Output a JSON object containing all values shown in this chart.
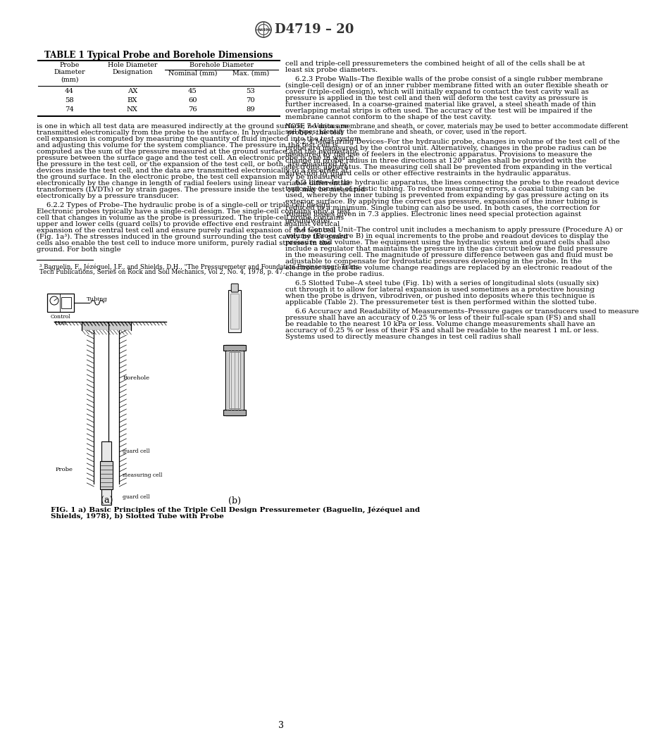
{
  "page_title": "D4719 – 20",
  "background_color": "#ffffff",
  "table_title": "TABLE 1 Typical Probe and Borehole Dimensions",
  "table_data": [
    [
      "44",
      "AX",
      "45",
      "53"
    ],
    [
      "58",
      "BX",
      "60",
      "70"
    ],
    [
      "74",
      "NX",
      "76",
      "89"
    ]
  ],
  "left_col_paragraphs": [
    {
      "indent": false,
      "text": "is one in which all test data are measured indirectly at the ground surface; no data are transmitted electronically from the probe to the surface. In hydraulic probes, the test cell expansion is computed by measuring the quantity of fluid injected into the test system and adjusting this volume for the system compliance. The pressure in the test cell is computed as the sum of the pressure measured at the ground surface and the hydrostatic pressure between the surface gage and the test cell. An electronic probe is one in which the pressure in the test cell, or the expansion of the test cell, or both, are measured by devices inside the test cell, and the data are transmitted electronically to a recorder at the ground surface. In the electronic probe, the test cell expansion may be measured electronically by the change in length of radial feelers using linear variable differential transformers (LVDTs) or by strain gages. The pressure inside the test cell may be measured electronically by a pressure transducer."
    },
    {
      "indent": true,
      "text": "6.2.2 Types of Probe–The hydraulic probe is of a single-cell or triple-cell design. Electronic probes typically have a single-cell design. The single-cell contains only a test cell that changes in volume as the probe is pressurized. The triple-cell probe contains upper and lower cells (guard cells) to provide effective end restraint against vertical expansion of the central test cell and ensure purely radial expansion of the test cell (Fig. 1a³). The stresses induced in the ground surrounding the test cavity by the guard cells also enable the test cell to induce more uniform, purely radial stresses in the ground. For both single"
    }
  ],
  "right_col_paragraphs": [
    {
      "type": "normal",
      "text": "cell and triple-cell pressuremeters the combined height of all of the cells shall be at least six probe diameters."
    },
    {
      "type": "section",
      "text": "6.2.3 Probe Walls–The flexible walls of the probe consist of a single rubber membrane (single-cell design) or of an inner rubber membrane fitted with an outer flexible sheath or cover (triple-cell design), which will initially expand to contact the test cavity wall as pressure is applied in the test cell and then will deform the test cavity as pressure is further increased. In a coarse-grained material like gravel, a steel sheath made of thin overlapping metal strips is often used. The accuracy of the test will be impaired if the membrane cannot conform to the shape of the test cavity."
    },
    {
      "type": "note",
      "text": "NOTE 7–Various membrane and sheath, or cover, materials may be used to better accommodate different soil types; identify the membrane and sheath, or cover, used in the report."
    },
    {
      "type": "section",
      "text": "6.2.4 Measuring Devices–For the hydraulic probe, changes in volume of the test cell of the probe are measured by the control unit. Alternatively, changes in the probe radius can be measured by the use of feelers in the electronic apparatus. Provisions to measure the change in probe radius in three directions at 120° angles shall be provided with the electronic apparatus. The measuring cell shall be prevented from expanding in the vertical direction by guard cells or other effective restraints in the hydraulic apparatus."
    },
    {
      "type": "section",
      "text": "6.3 Lines–In the hydraulic apparatus, the lines connecting the probe to the readout device typically consist of plastic tubing. To reduce measuring errors, a coaxial tubing can be used, whereby the inner tubing is prevented from expanding by gas pressure acting on its exterior surface. By applying the correct gas pressure, expansion of the inner tubing is reduced to a minimum. Single tubing can also be used. In both cases, the correction for volume losses given in 7.3 applies. Electronic lines need special protection against groundwater."
    },
    {
      "type": "section",
      "text": "6.4 Control Unit–The control unit includes a mechanism to apply pressure (Procedure A) or volume (Procedure B) in equal increments to the probe and readout devices to display the pressure and volume. The equipment using the hydraulic system and guard cells shall also include a regulator that maintains the pressure in the gas circuit below the fluid pressure in the measuring cell. The magnitude of pressure difference between gas and fluid must be adjustable to compensate for hydrostatic pressures developing in the probe. In the electronic system the volume change readings are replaced by an electronic readout of the change in the probe radius."
    },
    {
      "type": "section",
      "text": "6.5 Slotted Tube–A steel tube (Fig. 1b) with a series of longitudinal slots (usually six) cut through it to allow for lateral expansion is used sometimes as a protective housing when the probe is driven, vibrodriven, or pushed into deposits where this technique is applicable (Table 2). The pressuremeter test is then performed within the slotted tube."
    },
    {
      "type": "section",
      "text": "6.6 Accuracy and Readability of Measurements–Pressure gages or transducers used to measure pressure shall have an accuracy of 0.25 % or less of their full-scale span (FS) and shall be readable to the nearest 10 kPa or less. Volume change measurements shall have an accuracy of 0.25 % or less of their FS and shall be readable to the nearest 1 mL or less. Systems used to directly measure changes in test cell radius shall"
    }
  ],
  "footnote": "³ Baguelin, F., Jézéquel, J.F., and Shields, D.H., \"The Pressuremeter and Foundation Engineering,\" Trans Tech Publications, Series on Rock and Soil Mechanics, Vol 2, No. 4, 1978, p. 47.",
  "fig_caption_bold": "FIG. 1  a) Basic Principles of the Triple Cell Design Pressuremeter (Baguelin, Jézéquel and Shields, 1978), b) Slotted Tube with Probe",
  "page_number": "3"
}
